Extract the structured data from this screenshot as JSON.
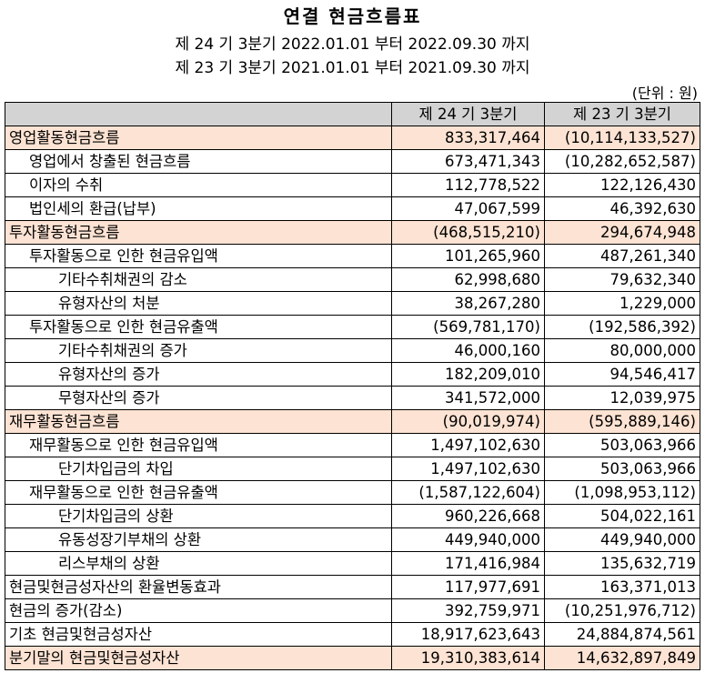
{
  "document": {
    "title": "연결 현금흐름표",
    "period_current": "제 24 기 3분기 2022.01.01 부터 2022.09.30 까지",
    "period_prior": "제 23 기 3분기 2021.01.01 부터 2021.09.30 까지",
    "unit": "(단위 : 원)"
  },
  "table": {
    "headers": [
      "",
      "제 24 기 3분기",
      "제 23 기 3분기"
    ],
    "rows": [
      {
        "label": "영업활동현금흐름",
        "current": "833,317,464",
        "prior": "(10,114,133,527)"
      },
      {
        "label": "영업에서 창출된 현금흐름",
        "current": "673,471,343",
        "prior": "(10,282,652,587)"
      },
      {
        "label": "이자의 수취",
        "current": "112,778,522",
        "prior": "122,126,430"
      },
      {
        "label": "법인세의 환급(납부)",
        "current": "47,067,599",
        "prior": "46,392,630"
      },
      {
        "label": "투자활동현금흐름",
        "current": "(468,515,210)",
        "prior": "294,674,948"
      },
      {
        "label": "투자활동으로 인한 현금유입액",
        "current": "101,265,960",
        "prior": "487,261,340"
      },
      {
        "label": "기타수취채권의 감소",
        "current": "62,998,680",
        "prior": "79,632,340"
      },
      {
        "label": "유형자산의 처분",
        "current": "38,267,280",
        "prior": "1,229,000"
      },
      {
        "label": "투자활동으로 인한 현금유출액",
        "current": "(569,781,170)",
        "prior": "(192,586,392)"
      },
      {
        "label": "기타수취채권의 증가",
        "current": "46,000,160",
        "prior": "80,000,000"
      },
      {
        "label": "유형자산의 증가",
        "current": "182,209,010",
        "prior": "94,546,417"
      },
      {
        "label": "무형자산의 증가",
        "current": "341,572,000",
        "prior": "12,039,975"
      },
      {
        "label": "재무활동현금흐름",
        "current": "(90,019,974)",
        "prior": "(595,889,146)"
      },
      {
        "label": "재무활동으로 인한 현금유입액",
        "current": "1,497,102,630",
        "prior": "503,063,966"
      },
      {
        "label": "단기차입금의 차입",
        "current": "1,497,102,630",
        "prior": "503,063,966"
      },
      {
        "label": "재무활동으로 인한 현금유출액",
        "current": "(1,587,122,604)",
        "prior": "(1,098,953,112)"
      },
      {
        "label": "단기차입금의 상환",
        "current": "960,226,668",
        "prior": "504,022,161"
      },
      {
        "label": "유동성장기부채의 상환",
        "current": "449,940,000",
        "prior": "449,940,000"
      },
      {
        "label": "리스부채의 상환",
        "current": "171,416,984",
        "prior": "135,632,719"
      },
      {
        "label": "현금및현금성자산의 환율변동효과",
        "current": "117,977,691",
        "prior": "163,371,013"
      },
      {
        "label": "현금의 증가(감소)",
        "current": "392,759,971",
        "prior": "(10,251,976,712)"
      },
      {
        "label": "기초 현금및현금성자산",
        "current": "18,917,623,643",
        "prior": "24,884,874,561"
      },
      {
        "label": "분기말의 현금및현금성자산",
        "current": "19,310,383,614",
        "prior": "14,632,897,849"
      }
    ]
  },
  "colors": {
    "header_fill": "#d3d3d3",
    "section_fill": "#fde3d3",
    "border": "#000000"
  }
}
